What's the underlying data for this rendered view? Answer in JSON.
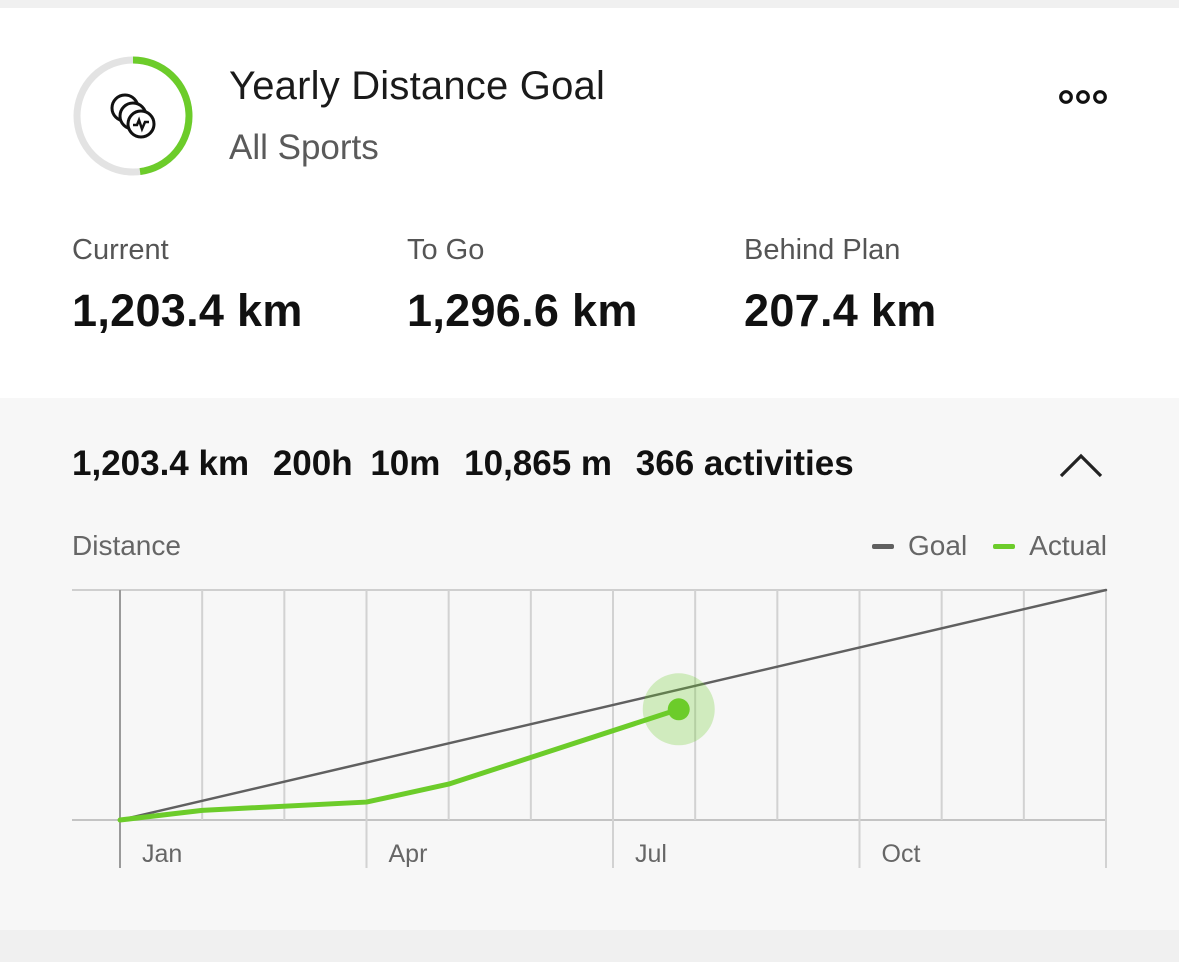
{
  "goal": {
    "title": "Yearly Distance Goal",
    "subtitle": "All Sports",
    "icon": "activity-coins-icon",
    "progress_fraction": 0.48,
    "accent_color": "#6ccc2a"
  },
  "stats": [
    {
      "label": "Current",
      "value": "1,203.4 km"
    },
    {
      "label": "To Go",
      "value": "1,296.6 km"
    },
    {
      "label": "Behind Plan",
      "value": "207.4 km"
    }
  ],
  "summary": {
    "distance": "1,203.4 km",
    "time_hours": "200h",
    "time_minutes": "10m",
    "elevation": "10,865 m",
    "activities": "366 activities"
  },
  "chart_data": {
    "type": "line",
    "title": "Distance",
    "x_ticks": [
      "Jan",
      "Apr",
      "Jul",
      "Oct"
    ],
    "legend": [
      {
        "name": "Goal",
        "color": "#606060"
      },
      {
        "name": "Actual",
        "color": "#6ccc2a"
      }
    ],
    "series": [
      {
        "name": "Goal",
        "x": [
          0,
          12
        ],
        "y": [
          0,
          2500
        ]
      },
      {
        "name": "Actual",
        "x": [
          0,
          1,
          3,
          4,
          6.8
        ],
        "y": [
          0,
          105,
          195,
          390,
          1203.4
        ]
      }
    ],
    "ylim": [
      0,
      2500
    ],
    "xlim": [
      0,
      12
    ],
    "grid": true,
    "legend_position": "top-right"
  }
}
